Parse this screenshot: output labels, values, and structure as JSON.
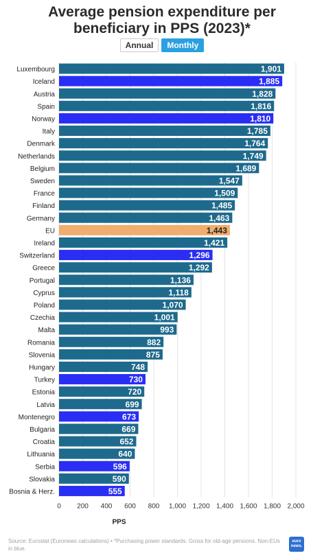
{
  "header": {
    "title_line1": "Average pension expenditure per",
    "title_line2": "beneficiary in PPS (2023)*"
  },
  "tabs": [
    {
      "label": "Annual",
      "active": false
    },
    {
      "label": "Monthly",
      "active": true
    }
  ],
  "chart_data": {
    "type": "bar",
    "orientation": "horizontal",
    "title": "Average pension expenditure per beneficiary in PPS (2023)*",
    "xlabel": "PPS",
    "xlim": [
      0,
      2000
    ],
    "xticks": [
      0,
      200,
      400,
      600,
      800,
      1000,
      1200,
      1400,
      1600,
      1800,
      2000
    ],
    "xtick_labels": [
      "0",
      "200",
      "400",
      "600",
      "800",
      "1,000",
      "1,200",
      "1,400",
      "1,600",
      "1,800",
      "2,000"
    ],
    "grid": true,
    "colors": {
      "eu_member": "#1e6a8d",
      "non_eu": "#2a2ef5",
      "eu_average": "#f0ad6e"
    },
    "categories": [
      "Luxembourg",
      "Iceland",
      "Austria",
      "Spain",
      "Norway",
      "Italy",
      "Denmark",
      "Netherlands",
      "Belgium",
      "Sweden",
      "France",
      "Finland",
      "Germany",
      "EU",
      "Ireland",
      "Switzerland",
      "Greece",
      "Portugal",
      "Cyprus",
      "Poland",
      "Czechia",
      "Malta",
      "Romania",
      "Slovenia",
      "Hungary",
      "Turkey",
      "Estonia",
      "Latvia",
      "Montenegro",
      "Bulgaria",
      "Croatia",
      "Lithuania",
      "Serbia",
      "Slovakia",
      "Bosnia & Herz."
    ],
    "values": [
      1901,
      1885,
      1828,
      1816,
      1810,
      1785,
      1764,
      1749,
      1689,
      1547,
      1509,
      1485,
      1463,
      1443,
      1421,
      1296,
      1292,
      1136,
      1118,
      1070,
      1001,
      993,
      882,
      875,
      748,
      730,
      720,
      699,
      673,
      669,
      652,
      640,
      596,
      590,
      555
    ],
    "value_labels": [
      "1,901",
      "1,885",
      "1,828",
      "1,816",
      "1,810",
      "1,785",
      "1,764",
      "1,749",
      "1,689",
      "1,547",
      "1,509",
      "1,485",
      "1,463",
      "1,443",
      "1,421",
      "1,296",
      "1,292",
      "1,136",
      "1,118",
      "1,070",
      "1,001",
      "993",
      "882",
      "875",
      "748",
      "730",
      "720",
      "699",
      "673",
      "669",
      "652",
      "640",
      "596",
      "590",
      "555"
    ],
    "group": [
      "eu_member",
      "non_eu",
      "eu_member",
      "eu_member",
      "non_eu",
      "eu_member",
      "eu_member",
      "eu_member",
      "eu_member",
      "eu_member",
      "eu_member",
      "eu_member",
      "eu_member",
      "eu_average",
      "eu_member",
      "non_eu",
      "eu_member",
      "eu_member",
      "eu_member",
      "eu_member",
      "eu_member",
      "eu_member",
      "eu_member",
      "eu_member",
      "eu_member",
      "non_eu",
      "eu_member",
      "eu_member",
      "non_eu",
      "eu_member",
      "eu_member",
      "eu_member",
      "non_eu",
      "eu_member",
      "non_eu"
    ]
  },
  "footer": {
    "source": "Source: Eurostat (Euronews calculations) • *Purchasing power standards. Gross for old-age pensions. Non-EUs in blue.",
    "logo_text": "euro news."
  }
}
